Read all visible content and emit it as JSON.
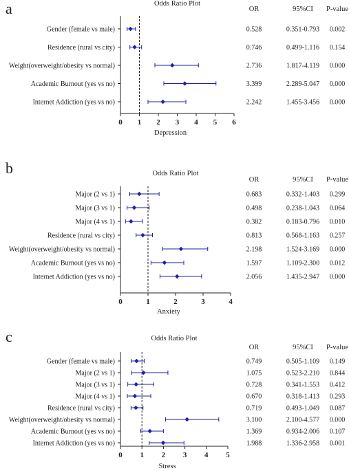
{
  "chart_data": [
    {
      "type": "forest",
      "panel_label": "a",
      "title": "Odds Ratio Plot",
      "xlabel": "Depression",
      "xlim": [
        0,
        6
      ],
      "xticks": [
        "0",
        "1",
        "2",
        "3",
        "4",
        "5",
        "6"
      ],
      "reference_line": 1,
      "columns": [
        "OR",
        "95%CI",
        "P-value"
      ],
      "rows": [
        {
          "label": "Gender (female vs male)",
          "or": 0.528,
          "lo": 0.351,
          "hi": 0.793,
          "or_text": "0.528",
          "ci_text": "0.351-0.793",
          "p_text": "0.002"
        },
        {
          "label": "Residence (rural vs city)",
          "or": 0.746,
          "lo": 0.499,
          "hi": 1.116,
          "or_text": "0.746",
          "ci_text": "0.499-1.116",
          "p_text": "0.154"
        },
        {
          "label": "Weight(overweight/obesity vs normal)",
          "or": 2.736,
          "lo": 1.817,
          "hi": 4.119,
          "or_text": "2.736",
          "ci_text": "1.817-4.119",
          "p_text": "0.000"
        },
        {
          "label": "Academic Burnout (yes vs no)",
          "or": 3.399,
          "lo": 2.289,
          "hi": 5.047,
          "or_text": "3.399",
          "ci_text": "2.289-5.047",
          "p_text": "0.000"
        },
        {
          "label": "Internet Addiction (yes vs no)",
          "or": 2.242,
          "lo": 1.455,
          "hi": 3.456,
          "or_text": "2.242",
          "ci_text": "1.455-3.456",
          "p_text": "0.000"
        }
      ]
    },
    {
      "type": "forest",
      "panel_label": "b",
      "title": "Odds Ratio Plot",
      "xlabel": "Anxiety",
      "xlim": [
        0,
        4
      ],
      "xticks": [
        "0",
        "1",
        "2",
        "3",
        "4"
      ],
      "reference_line": 1,
      "columns": [
        "OR",
        "95%CI",
        "P-value"
      ],
      "rows": [
        {
          "label": "Major (2 vs 1)",
          "or": 0.683,
          "lo": 0.332,
          "hi": 1.403,
          "or_text": "0.683",
          "ci_text": "0.332-1.403",
          "p_text": "0.299"
        },
        {
          "label": "Major (3 vs 1)",
          "or": 0.498,
          "lo": 0.238,
          "hi": 1.043,
          "or_text": "0.498",
          "ci_text": "0.238-1.043",
          "p_text": "0.064"
        },
        {
          "label": "Major (4 vs 1)",
          "or": 0.382,
          "lo": 0.183,
          "hi": 0.796,
          "or_text": "0.382",
          "ci_text": "0.183-0.796",
          "p_text": "0.010"
        },
        {
          "label": "Residence (rural vs city)",
          "or": 0.813,
          "lo": 0.568,
          "hi": 1.163,
          "or_text": "0.813",
          "ci_text": "0.568-1.163",
          "p_text": "0.257"
        },
        {
          "label": "Weight(overweight/obesity vs normal)",
          "or": 2.198,
          "lo": 1.524,
          "hi": 3.169,
          "or_text": "2.198",
          "ci_text": "1.524-3.169",
          "p_text": "0.000"
        },
        {
          "label": "Academic Burnout (yes vs no)",
          "or": 1.597,
          "lo": 1.109,
          "hi": 2.3,
          "or_text": "1.597",
          "ci_text": "1.109-2.300",
          "p_text": "0.012"
        },
        {
          "label": "Internet Addiction (yes vs no)",
          "or": 2.056,
          "lo": 1.435,
          "hi": 2.947,
          "or_text": "2.056",
          "ci_text": "1.435-2.947",
          "p_text": "0.000"
        }
      ]
    },
    {
      "type": "forest",
      "panel_label": "c",
      "title": "Odds Ratio Plot",
      "xlabel": "Stress",
      "xlim": [
        0,
        5
      ],
      "xticks": [
        "0",
        "1",
        "2",
        "3",
        "4",
        "5"
      ],
      "reference_line": 1,
      "columns": [
        "OR",
        "95%CI",
        "P-value"
      ],
      "rows": [
        {
          "label": "Gender (female vs male)",
          "or": 0.749,
          "lo": 0.505,
          "hi": 1.109,
          "or_text": "0.749",
          "ci_text": "0.505-1.109",
          "p_text": "0.149"
        },
        {
          "label": "Major (2 vs 1)",
          "or": 1.075,
          "lo": 0.523,
          "hi": 2.21,
          "or_text": "1.075",
          "ci_text": "0.523-2.210",
          "p_text": "0.844"
        },
        {
          "label": "Major (3 vs 1)",
          "or": 0.728,
          "lo": 0.341,
          "hi": 1.553,
          "or_text": "0.728",
          "ci_text": "0.341-1.553",
          "p_text": "0.412"
        },
        {
          "label": "Major (4 vs 1)",
          "or": 0.67,
          "lo": 0.318,
          "hi": 1.413,
          "or_text": "0.670",
          "ci_text": "0.318-1.413",
          "p_text": "0.293"
        },
        {
          "label": "Residence (rural vs city)",
          "or": 0.719,
          "lo": 0.493,
          "hi": 1.049,
          "or_text": "0.719",
          "ci_text": "0.493-1.049",
          "p_text": "0.087"
        },
        {
          "label": "Weight(overweight/obesity vs normal)",
          "or": 3.1,
          "lo": 2.1,
          "hi": 4.577,
          "or_text": "3.100",
          "ci_text": "2.100-4.577",
          "p_text": "0.000"
        },
        {
          "label": "Academic Burnout (yes vs no)",
          "or": 1.369,
          "lo": 0.934,
          "hi": 2.006,
          "or_text": "1.369",
          "ci_text": "0.934-2.006",
          "p_text": "0.107"
        },
        {
          "label": "Internet Addiction (yes vs no)",
          "or": 1.988,
          "lo": 1.336,
          "hi": 2.958,
          "or_text": "1.988",
          "ci_text": "1.336-2.958",
          "p_text": "0.001"
        }
      ]
    }
  ],
  "colors": {
    "marker": "#1f1fa6",
    "axis": "#222222",
    "text": "#222222"
  }
}
